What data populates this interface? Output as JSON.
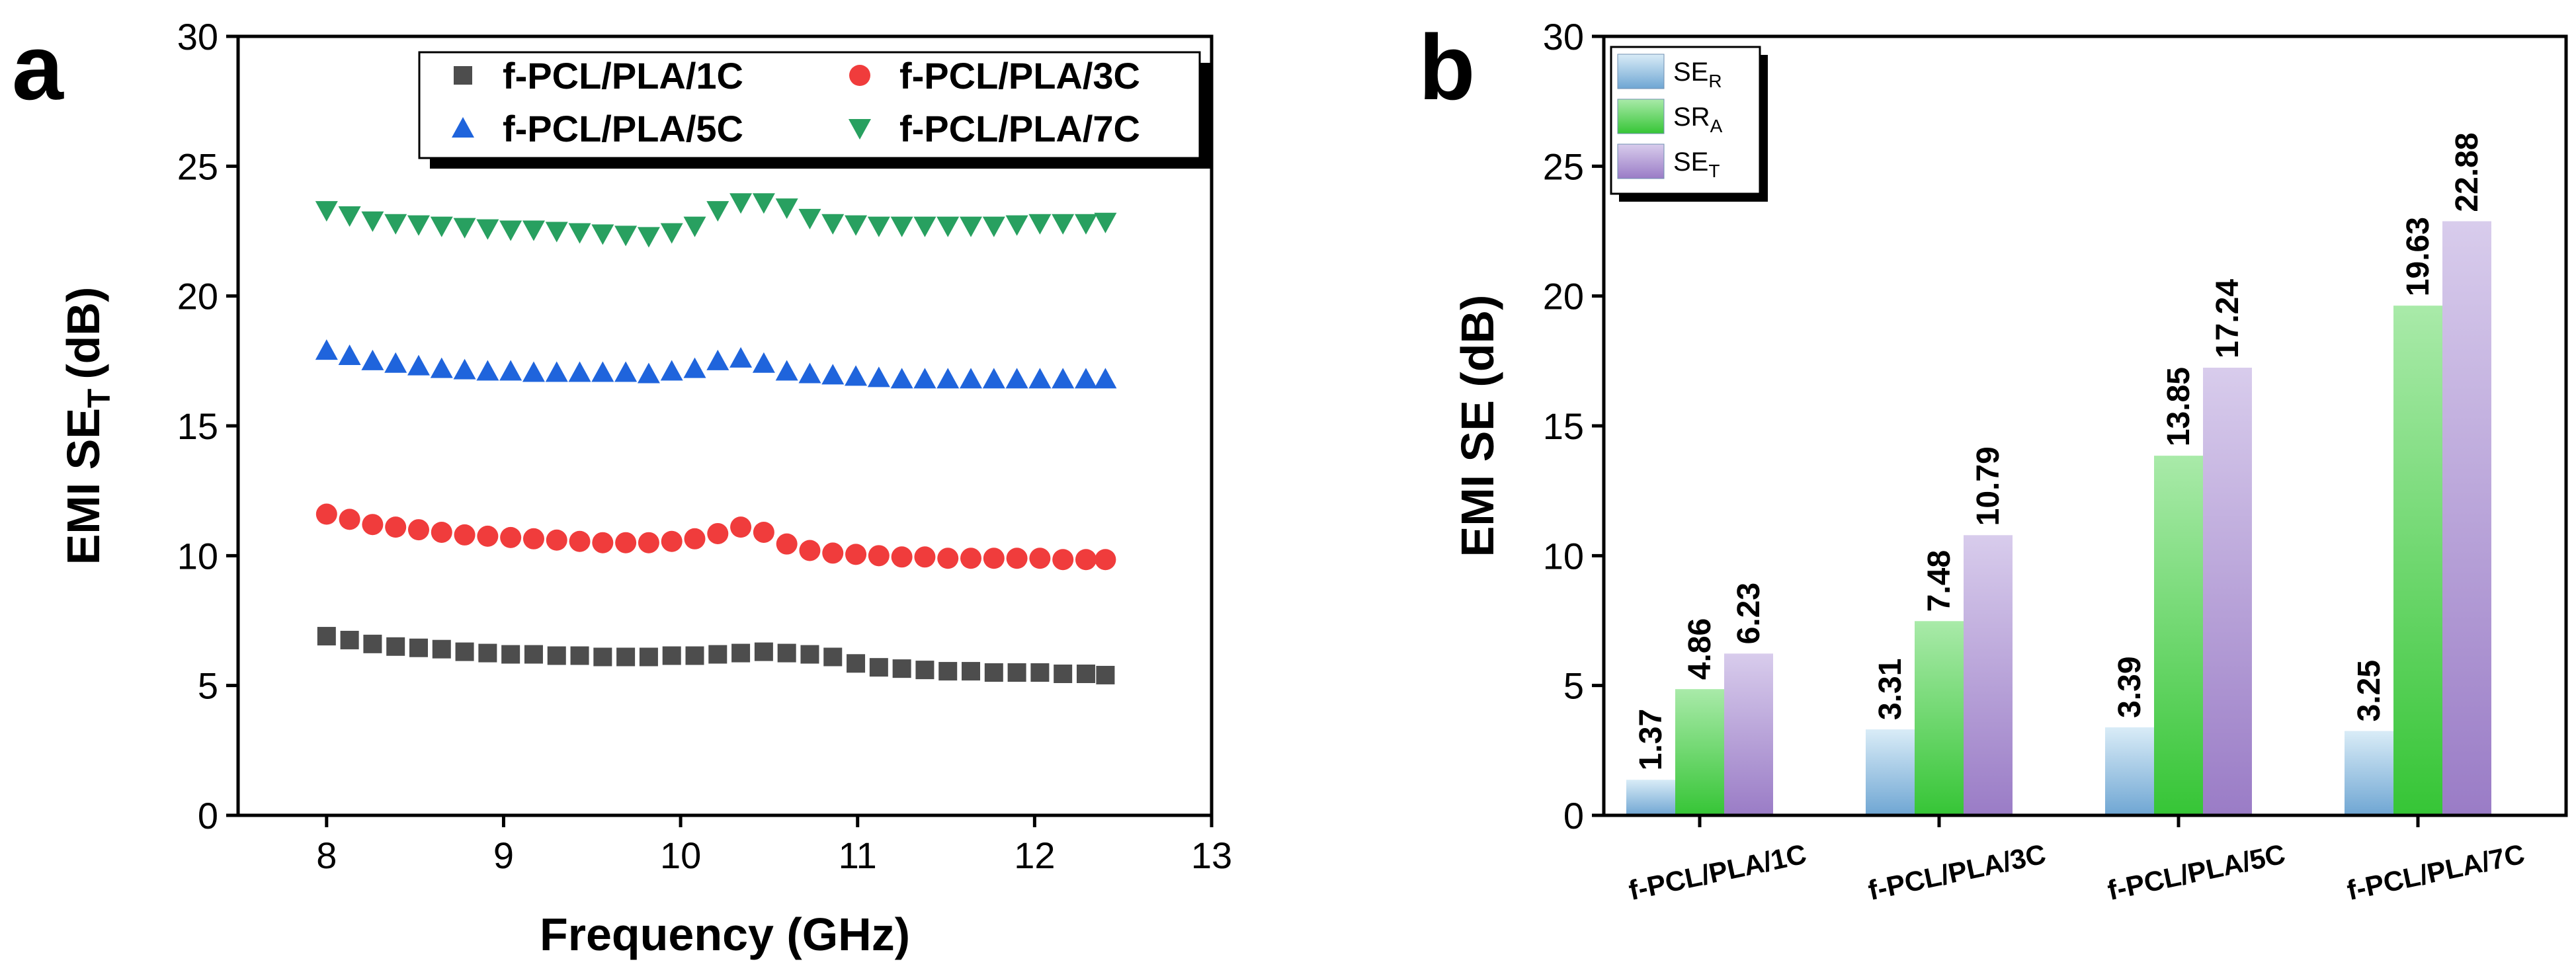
{
  "chart_data": [
    {
      "type": "scatter",
      "panel_label": "a",
      "xlabel": "Frequency (GHz)",
      "ylabel_main": "EMI SE",
      "ylabel_sub": "T",
      "ylabel_unit": "(dB)",
      "xlim": [
        7.5,
        13
      ],
      "ylim": [
        0,
        30
      ],
      "xticks": [
        "8",
        "9",
        "10",
        "11",
        "12",
        "13"
      ],
      "yticks": [
        "0",
        "5",
        "10",
        "15",
        "20",
        "25",
        "30"
      ],
      "legend_position": "top-right",
      "x": [
        8.0,
        8.13,
        8.26,
        8.39,
        8.52,
        8.65,
        8.78,
        8.91,
        9.04,
        9.17,
        9.3,
        9.43,
        9.56,
        9.69,
        9.82,
        9.95,
        10.08,
        10.21,
        10.34,
        10.47,
        10.6,
        10.73,
        10.86,
        10.99,
        11.12,
        11.25,
        11.38,
        11.51,
        11.64,
        11.77,
        11.9,
        12.03,
        12.16,
        12.29,
        12.4
      ],
      "series": [
        {
          "name": "f-PCL/PLA/1C",
          "color": "#4d4d4d",
          "marker": "square",
          "values": [
            6.9,
            6.75,
            6.6,
            6.5,
            6.45,
            6.4,
            6.3,
            6.25,
            6.2,
            6.2,
            6.15,
            6.15,
            6.1,
            6.1,
            6.1,
            6.15,
            6.15,
            6.2,
            6.25,
            6.3,
            6.25,
            6.2,
            6.1,
            5.85,
            5.7,
            5.65,
            5.6,
            5.55,
            5.55,
            5.5,
            5.5,
            5.5,
            5.45,
            5.45,
            5.4
          ]
        },
        {
          "name": "f-PCL/PLA/3C",
          "color": "#f03c3c",
          "marker": "circle",
          "values": [
            11.6,
            11.4,
            11.2,
            11.1,
            11.0,
            10.9,
            10.8,
            10.75,
            10.7,
            10.65,
            10.6,
            10.55,
            10.5,
            10.5,
            10.5,
            10.55,
            10.65,
            10.85,
            11.1,
            10.9,
            10.45,
            10.2,
            10.1,
            10.05,
            10.0,
            9.95,
            9.95,
            9.9,
            9.9,
            9.9,
            9.9,
            9.9,
            9.85,
            9.85,
            9.85
          ]
        },
        {
          "name": "f-PCL/PLA/5C",
          "color": "#1f64dc",
          "marker": "triangle-up",
          "values": [
            17.9,
            17.7,
            17.5,
            17.4,
            17.3,
            17.2,
            17.15,
            17.1,
            17.1,
            17.05,
            17.05,
            17.05,
            17.05,
            17.05,
            17.0,
            17.1,
            17.2,
            17.5,
            17.6,
            17.4,
            17.1,
            17.0,
            16.95,
            16.9,
            16.85,
            16.8,
            16.8,
            16.8,
            16.8,
            16.8,
            16.8,
            16.8,
            16.8,
            16.8,
            16.8
          ]
        },
        {
          "name": "f-PCL/PLA/7C",
          "color": "#28a060",
          "marker": "triangle-down",
          "values": [
            23.3,
            23.1,
            22.9,
            22.8,
            22.75,
            22.7,
            22.65,
            22.6,
            22.55,
            22.55,
            22.5,
            22.45,
            22.4,
            22.35,
            22.3,
            22.45,
            22.7,
            23.3,
            23.6,
            23.6,
            23.4,
            23.0,
            22.8,
            22.75,
            22.7,
            22.7,
            22.7,
            22.7,
            22.7,
            22.7,
            22.75,
            22.8,
            22.8,
            22.8,
            22.85
          ]
        }
      ]
    },
    {
      "type": "bar",
      "panel_label": "b",
      "ylabel": "EMI SE (dB)",
      "xlabel": "",
      "ylim": [
        0,
        30
      ],
      "yticks": [
        "0",
        "5",
        "10",
        "15",
        "20",
        "25",
        "30"
      ],
      "categories": [
        "f-PCL/PLA/1C",
        "f-PCL/PLA/3C",
        "f-PCL/PLA/5C",
        "f-PCL/PLA/7C"
      ],
      "legend_position": "top-left",
      "series": [
        {
          "name_main": "SE",
          "name_sub": "R",
          "colors": [
            "#d9ecf7",
            "#6fa6d3"
          ],
          "values": [
            1.37,
            3.31,
            3.39,
            3.25
          ],
          "labels": [
            "1.37",
            "3.31",
            "3.39",
            "3.25"
          ]
        },
        {
          "name_main": "SR",
          "name_sub": "A",
          "colors": [
            "#a9eaa9",
            "#36c536"
          ],
          "values": [
            4.86,
            7.48,
            13.85,
            19.63
          ],
          "labels": [
            "4.86",
            "7.48",
            "13.85",
            "19.63"
          ]
        },
        {
          "name_main": "SE",
          "name_sub": "T",
          "colors": [
            "#d8ccec",
            "#9a7cc6"
          ],
          "values": [
            6.23,
            10.79,
            17.24,
            22.88
          ],
          "labels": [
            "6.23",
            "10.79",
            "17.24",
            "22.88"
          ]
        }
      ]
    }
  ]
}
